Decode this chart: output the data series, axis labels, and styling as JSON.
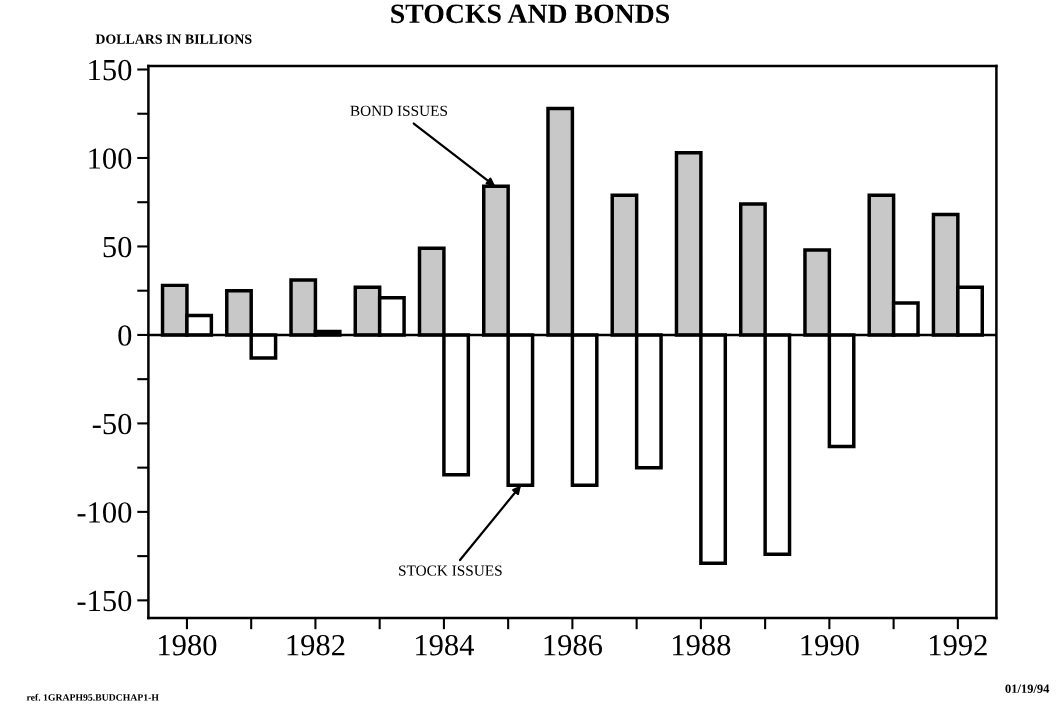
{
  "chart_data": {
    "type": "bar",
    "title": "STOCKS AND BONDS",
    "ylabel": "DOLLARS IN BILLIONS",
    "x": [
      1980,
      1981,
      1982,
      1983,
      1984,
      1985,
      1986,
      1987,
      1988,
      1989,
      1990,
      1991,
      1992
    ],
    "series": [
      {
        "color": "#c8c8c8",
        "values": [
          28,
          25,
          31,
          27,
          49,
          84,
          128,
          79,
          103,
          74,
          48,
          79,
          68
        ]
      },
      {
        "color": "#ffffff",
        "values": [
          11,
          -13,
          2,
          21,
          -79,
          -85,
          -85,
          -75,
          -129,
          -124,
          -63,
          18,
          27
        ]
      }
    ],
    "xlim": [
      1979.4,
      1992.6
    ],
    "xticks": [
      1980,
      {
        "value": 1981,
        "label": null
      },
      1982,
      {
        "value": 1983,
        "label": null
      },
      1984,
      {
        "value": 1985,
        "label": null
      },
      1986,
      {
        "value": 1987,
        "label": null
      },
      1988,
      {
        "value": 1989,
        "label": null
      },
      1990,
      {
        "value": 1991,
        "label": null
      },
      1992
    ],
    "ylim": [
      -160,
      152
    ],
    "yticks": [
      -150,
      {
        "value": -125,
        "label": null
      },
      -100,
      {
        "value": -75,
        "label": null
      },
      -50,
      {
        "value": -25,
        "label": null
      },
      0,
      {
        "value": 25,
        "label": null
      },
      50,
      {
        "value": 75,
        "label": null
      },
      100,
      {
        "value": 125,
        "label": null
      },
      150
    ],
    "ref_lines": [
      {
        "axis": "y",
        "value": 0,
        "color": "#000000"
      }
    ],
    "annotations": [
      {
        "text": "BOND ISSUES",
        "x": 1984.8,
        "y": 84
      },
      {
        "text": "STOCK ISSUES",
        "x": 1985.2,
        "y": -85
      },
      "ref. 1GRAPH95.BUDCHAP1-H",
      "01/19/94"
    ],
    "grid": false,
    "legend": false
  }
}
